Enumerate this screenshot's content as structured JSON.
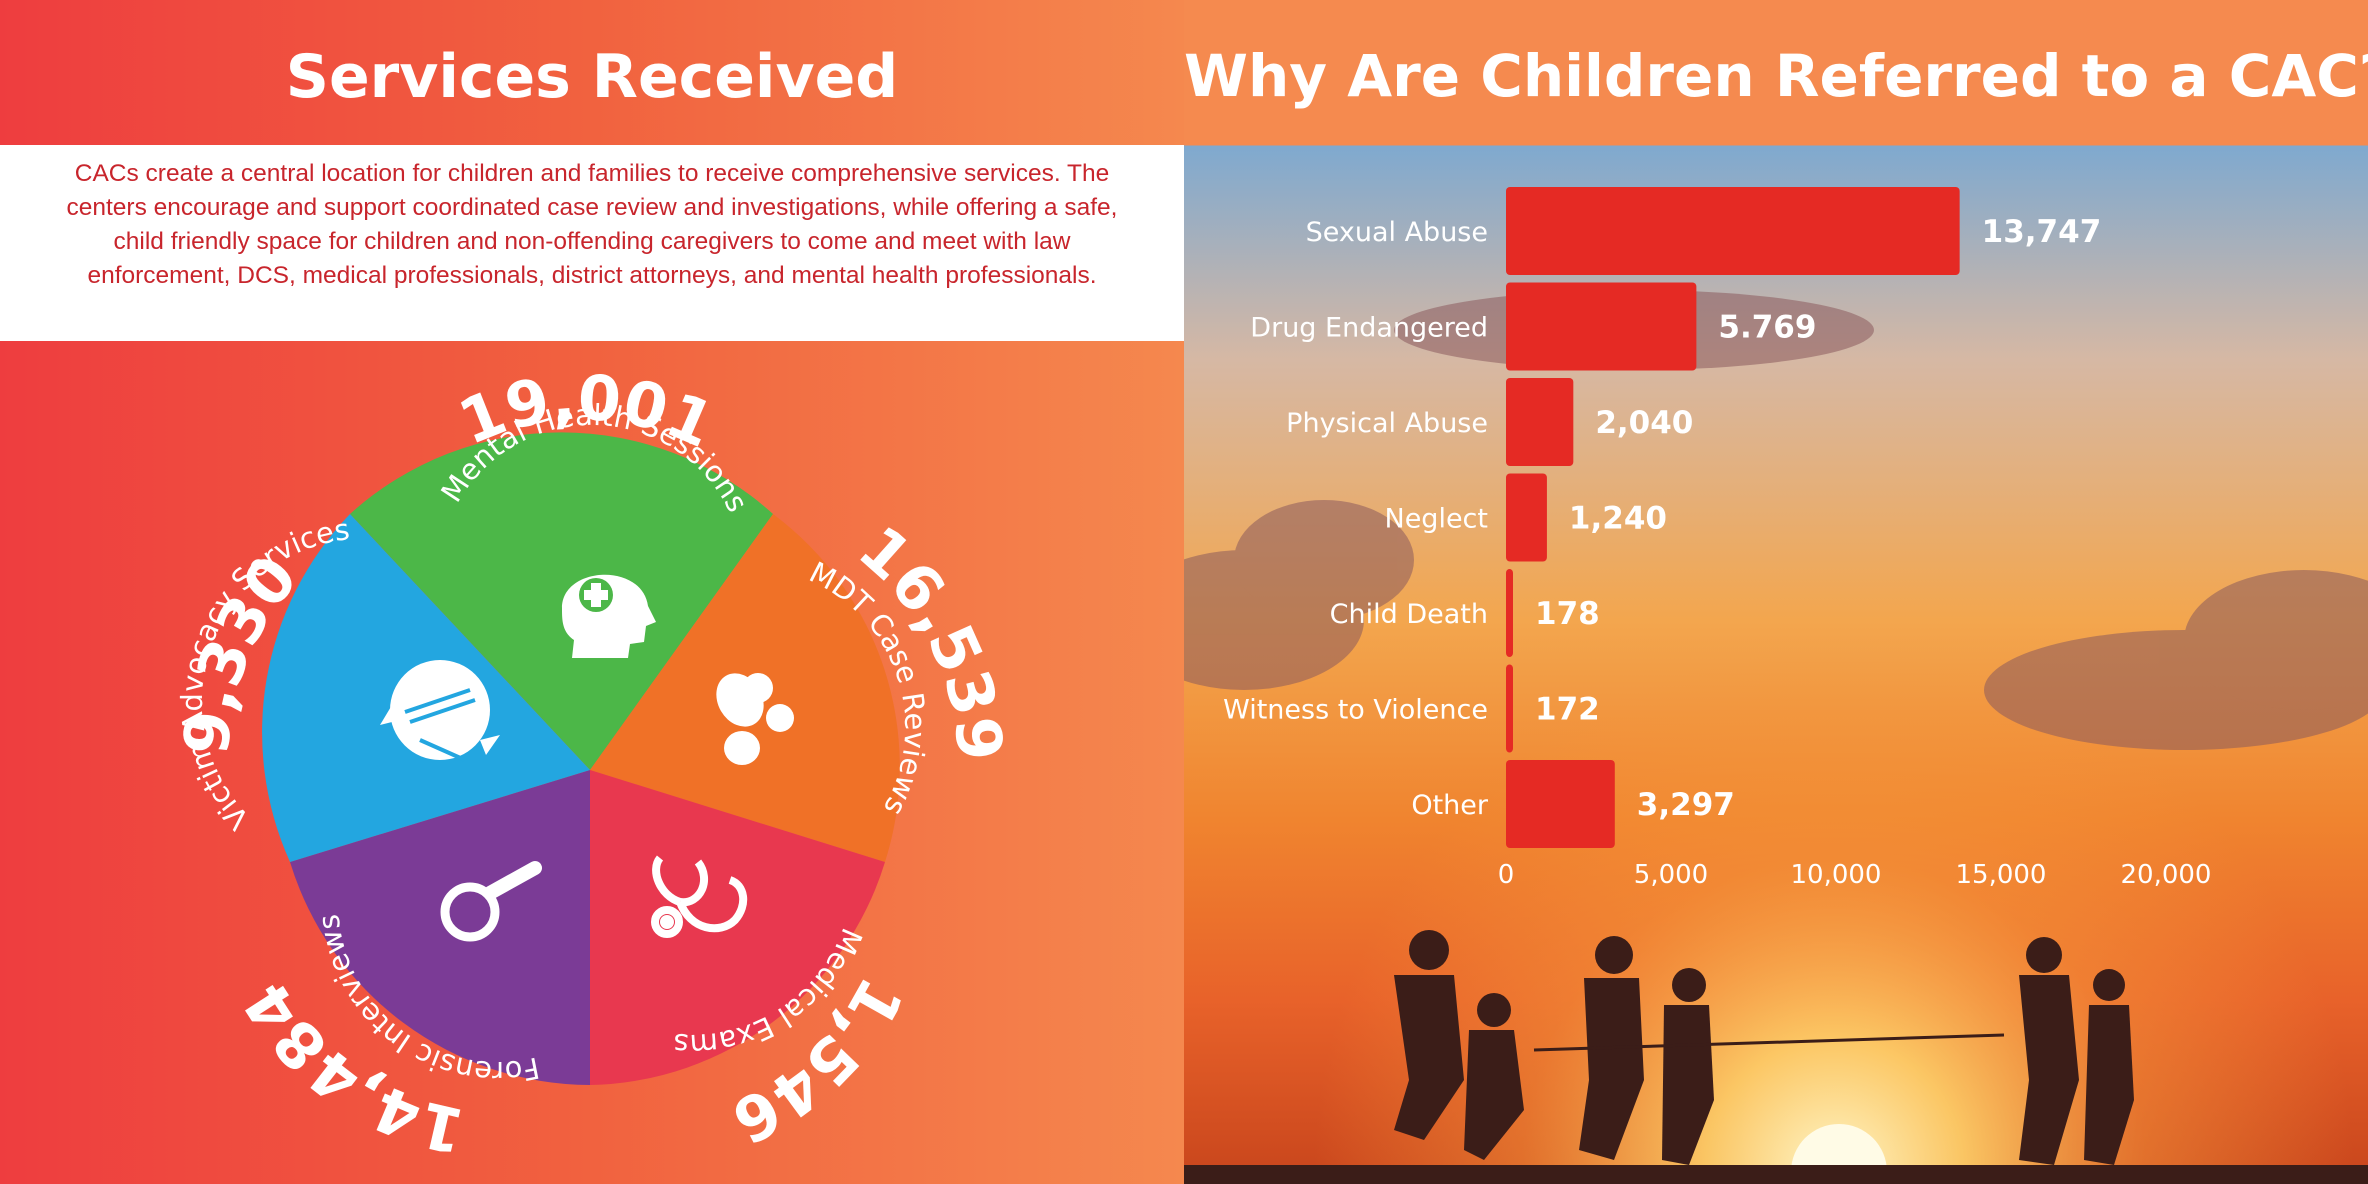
{
  "left": {
    "title": "Services Received",
    "intro": "CACs create a central location for children and families to receive comprehensive services. The centers encourage and support coordinated case review and investigations, while offering a safe, child friendly space for children and non-offending caregivers to come and meet with law enforcement, DCS, medical professionals, district attorneys, and mental health professionals.",
    "services": [
      {
        "label": "Mental Health Sessions",
        "value": "19,001",
        "color": "#4cb748",
        "icon": "head-plus-icon"
      },
      {
        "label": "MDT Case Reviews",
        "value": "16,539",
        "color": "#f07127",
        "icon": "people-group-icon"
      },
      {
        "label": "Medical Exams",
        "value": "1,546",
        "color": "#e8384f",
        "icon": "stethoscope-icon"
      },
      {
        "label": "Forensic Interviews",
        "value": "14,484",
        "color": "#7b3b96",
        "icon": "magnifier-icon"
      },
      {
        "label": "Victim Advocacy Services",
        "value": "9,330",
        "color": "#23a6e0",
        "icon": "helping-hands-icon"
      }
    ]
  },
  "right": {
    "title": "Why Are Children Referred to a CAC?"
  },
  "chart_data": {
    "type": "bar",
    "orientation": "horizontal",
    "title": "Why Are Children Referred to a CAC?",
    "categories": [
      "Sexual Abuse",
      "Drug Endangered",
      "Physical Abuse",
      "Neglect",
      "Child Death",
      "Witness to Violence",
      "Other"
    ],
    "values": [
      13747,
      5769,
      2040,
      1240,
      178,
      172,
      3297
    ],
    "value_labels": [
      "13,747",
      "5.769",
      "2,040",
      "1,240",
      "178",
      "172",
      "3,297"
    ],
    "xlim": [
      0,
      20000
    ],
    "xticks": [
      0,
      5000,
      10000,
      15000,
      20000
    ],
    "xtick_labels": [
      "0",
      "5,000",
      "10,000",
      "15,000",
      "20,000"
    ],
    "bar_color": "#e52a24",
    "grid": false
  }
}
